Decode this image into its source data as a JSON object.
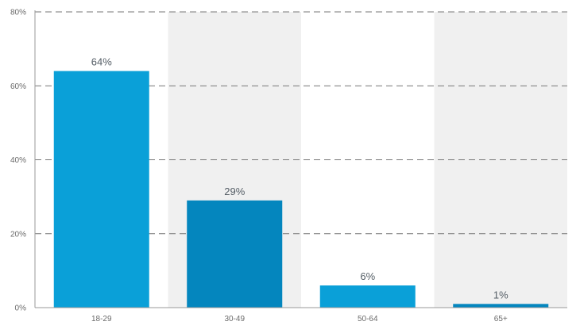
{
  "chart_data": {
    "type": "bar",
    "categories": [
      "18-29",
      "30-49",
      "50-64",
      "65+"
    ],
    "values": [
      64,
      29,
      6,
      1
    ],
    "data_labels": [
      "64%",
      "29%",
      "6%",
      "1%"
    ],
    "y_ticks": [
      0,
      20,
      40,
      60,
      80
    ],
    "y_tick_labels": [
      "0%",
      "20%",
      "40%",
      "60%",
      "80%"
    ],
    "ylim": [
      0,
      80
    ],
    "grid": true,
    "grid_style": "dashed",
    "alternating_band_color": "#f0f0f0",
    "bar_colors": [
      "#0aa0d8",
      "#0486be",
      "#0aa0d8",
      "#0486be"
    ],
    "axis_color": "#999999"
  }
}
